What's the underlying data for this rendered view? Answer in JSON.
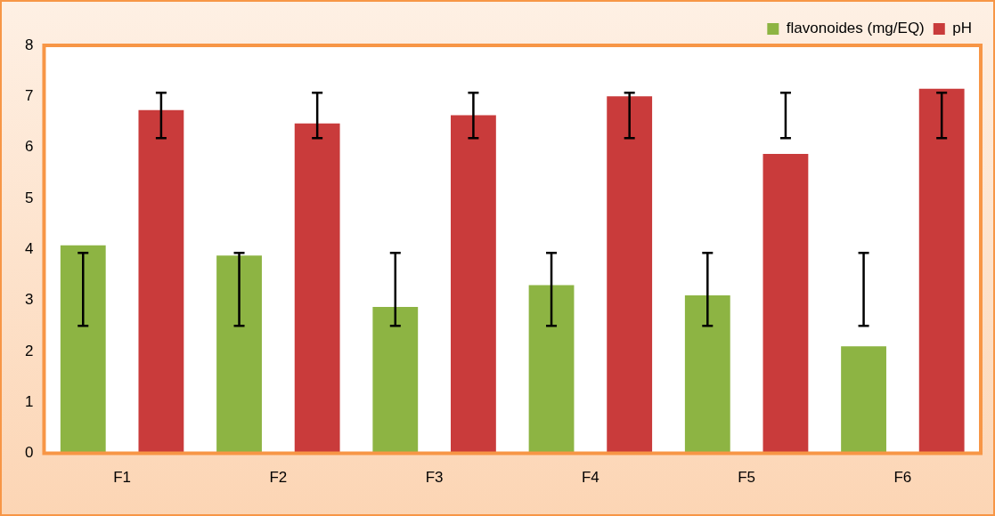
{
  "chart_data": {
    "type": "bar",
    "categories": [
      "F1",
      "F2",
      "F3",
      "F4",
      "F5",
      "F6"
    ],
    "series": [
      {
        "name": "flavonoides (mg/EQ)",
        "color": "#8db443",
        "values": [
          4.08,
          3.88,
          2.87,
          3.3,
          3.1,
          2.1
        ],
        "errors": [
          [
            2.5,
            3.93
          ],
          [
            2.5,
            3.93
          ],
          [
            2.5,
            3.93
          ],
          [
            2.5,
            3.93
          ],
          [
            2.5,
            3.93
          ],
          [
            2.5,
            3.93
          ]
        ]
      },
      {
        "name": "pH",
        "color": "#c93b3b",
        "values": [
          6.73,
          6.47,
          6.63,
          7.0,
          5.87,
          7.15
        ],
        "errors": [
          [
            6.18,
            7.07
          ],
          [
            6.18,
            7.07
          ],
          [
            6.18,
            7.07
          ],
          [
            6.18,
            7.07
          ],
          [
            6.18,
            7.07
          ],
          [
            6.18,
            7.07
          ]
        ]
      }
    ],
    "ylim": [
      0,
      8
    ],
    "yticks": [
      0,
      1,
      2,
      3,
      4,
      5,
      6,
      7,
      8
    ],
    "grid": false,
    "legend": "top right"
  }
}
